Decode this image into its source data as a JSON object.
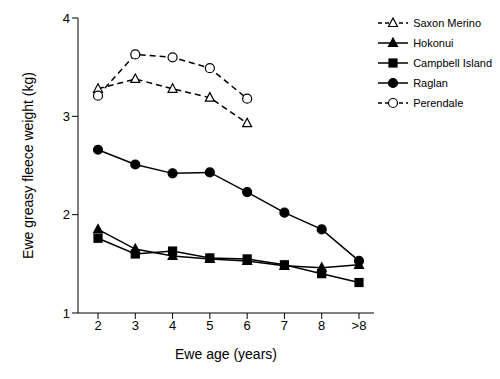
{
  "chart_data": {
    "type": "line",
    "x_label": "Ewe age (years)",
    "y_label": "Ewe greasy fleece weight (kg)",
    "categories": [
      "2",
      "3",
      "4",
      "5",
      "6",
      "7",
      "8",
      ">8"
    ],
    "ylim": [
      1,
      4
    ],
    "yticks": [
      1,
      2,
      3,
      4
    ],
    "grid": false,
    "legend": "right",
    "series": [
      {
        "name": "Saxon Merino",
        "color": "#000000",
        "marker": "triangle_open",
        "line_style": "dashed",
        "values": [
          3.28,
          3.38,
          3.28,
          3.19,
          2.93,
          null,
          null,
          null
        ]
      },
      {
        "name": "Hokonui",
        "color": "#000000",
        "marker": "triangle",
        "line_style": "solid",
        "values": [
          1.85,
          1.65,
          1.58,
          1.55,
          1.53,
          1.48,
          1.46,
          1.49
        ]
      },
      {
        "name": "Campbell Island",
        "color": "#000000",
        "marker": "square",
        "line_style": "solid",
        "values": [
          1.76,
          1.6,
          1.63,
          1.56,
          1.55,
          1.49,
          1.4,
          1.31
        ]
      },
      {
        "name": "Raglan",
        "color": "#000000",
        "marker": "circle",
        "line_style": "solid",
        "values": [
          2.66,
          2.51,
          2.42,
          2.43,
          2.23,
          2.02,
          1.85,
          1.53
        ]
      },
      {
        "name": "Perendale",
        "color": "#000000",
        "marker": "circle_open",
        "line_style": "dashed",
        "values": [
          3.21,
          3.63,
          3.6,
          3.49,
          3.18,
          null,
          null,
          null
        ]
      }
    ]
  }
}
